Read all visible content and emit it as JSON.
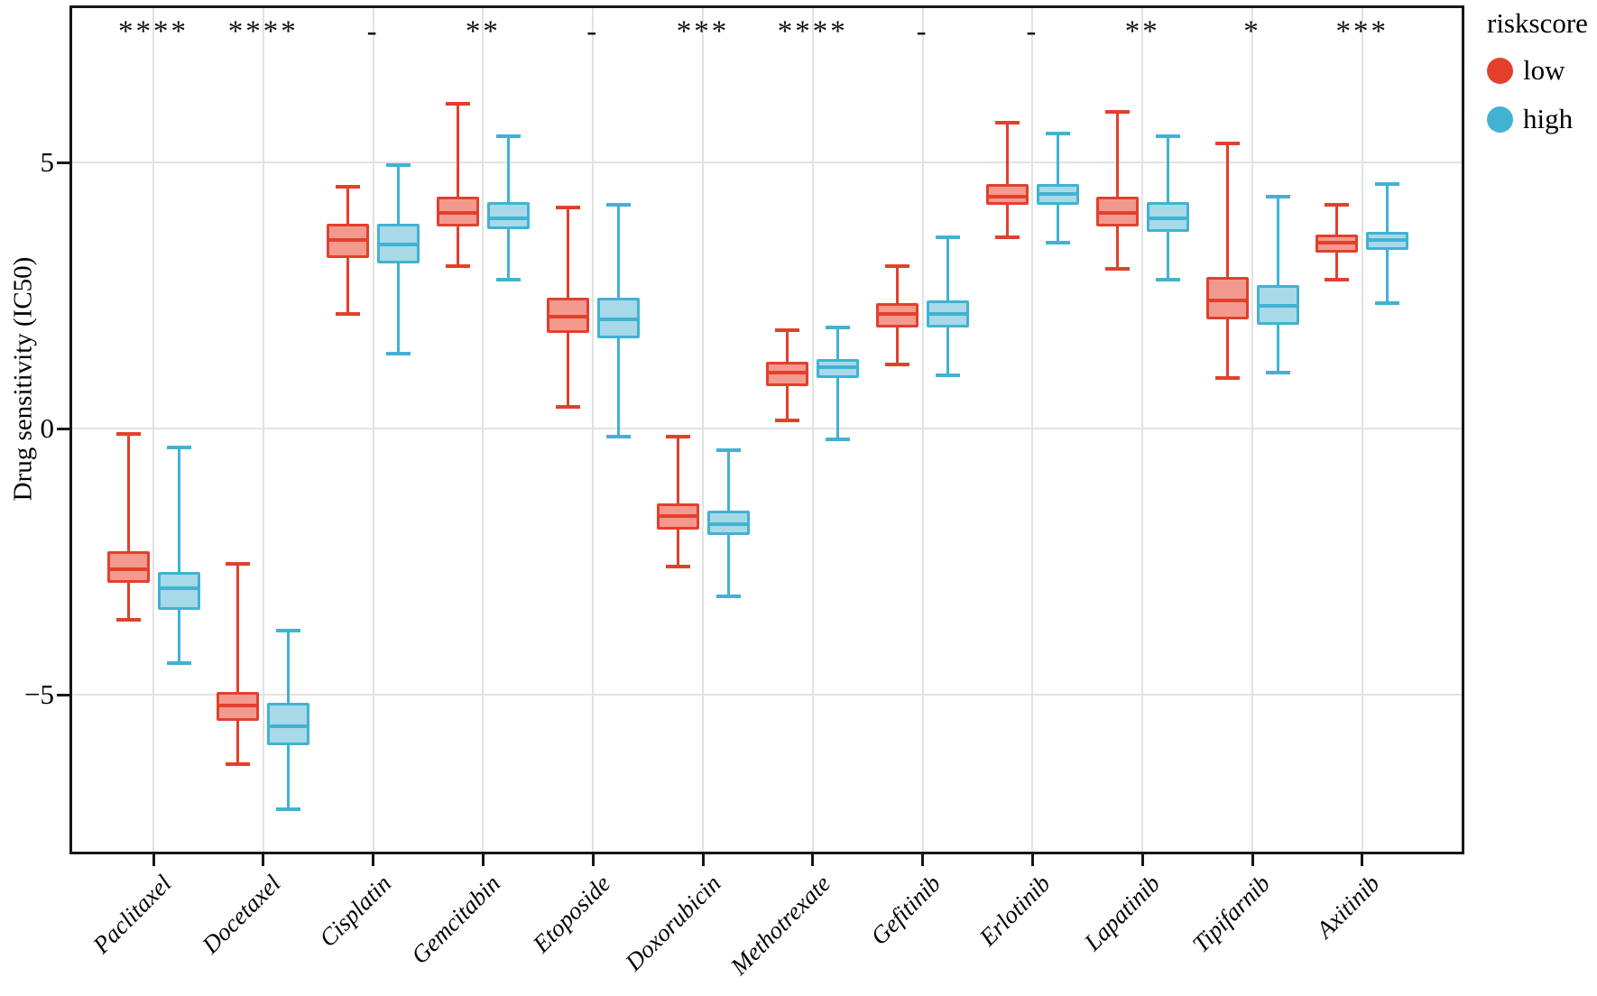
{
  "y_axis": {
    "title": "Drug sensitivity (IC50)",
    "ticks": [
      {
        "value": 5,
        "label": "5"
      },
      {
        "value": 0,
        "label": "0"
      },
      {
        "value": -5,
        "label": "−5"
      }
    ]
  },
  "legend": {
    "title": "riskscore",
    "items": [
      {
        "label": "low",
        "color": "#e2402d"
      },
      {
        "label": "high",
        "color": "#41b2d2"
      }
    ]
  },
  "chart_data": {
    "type": "boxplot",
    "title": "",
    "xlabel": "",
    "ylabel": "Drug sensitivity (IC50)",
    "ylim": [
      -8,
      7.9
    ],
    "grid": "major-only",
    "legend_position": "right-top",
    "categories": [
      "Paclitaxel",
      "Docetaxel",
      "Cisplatin",
      "Gemcitabin",
      "Etoposide",
      "Doxorubicin",
      "Methotrexate",
      "Gefitinib",
      "Erlotinib",
      "Lapatinib",
      "Tipifarnib",
      "Axitinib"
    ],
    "significance": [
      "****",
      "****",
      "-",
      "**",
      "-",
      "***",
      "****",
      "-",
      "-",
      "**",
      "*",
      "***"
    ],
    "series": [
      {
        "name": "low",
        "stroke": "#e2402d",
        "fill": "#f39a8f",
        "boxes": [
          {
            "min": -3.6,
            "q1": -2.9,
            "median": -2.65,
            "q3": -2.3,
            "max": -0.1
          },
          {
            "min": -6.3,
            "q1": -5.5,
            "median": -5.2,
            "q3": -4.95,
            "max": -2.55
          },
          {
            "min": 2.15,
            "q1": 3.2,
            "median": 3.55,
            "q3": 3.85,
            "max": 4.55
          },
          {
            "min": 3.05,
            "q1": 3.8,
            "median": 4.05,
            "q3": 4.35,
            "max": 6.1
          },
          {
            "min": 0.4,
            "q1": 1.8,
            "median": 2.1,
            "q3": 2.45,
            "max": 4.15
          },
          {
            "min": -2.6,
            "q1": -1.9,
            "median": -1.65,
            "q3": -1.4,
            "max": -0.15
          },
          {
            "min": 0.15,
            "q1": 0.8,
            "median": 1.05,
            "q3": 1.25,
            "max": 1.85
          },
          {
            "min": 1.2,
            "q1": 1.9,
            "median": 2.15,
            "q3": 2.35,
            "max": 3.05
          },
          {
            "min": 3.6,
            "q1": 4.2,
            "median": 4.35,
            "q3": 4.6,
            "max": 5.75
          },
          {
            "min": 3.0,
            "q1": 3.8,
            "median": 4.05,
            "q3": 4.35,
            "max": 5.95
          },
          {
            "min": 0.95,
            "q1": 2.05,
            "median": 2.4,
            "q3": 2.85,
            "max": 5.35
          },
          {
            "min": 2.8,
            "q1": 3.3,
            "median": 3.5,
            "q3": 3.65,
            "max": 4.2
          }
        ]
      },
      {
        "name": "high",
        "stroke": "#41b2d2",
        "fill": "#a8d9e8",
        "boxes": [
          {
            "min": -4.4,
            "q1": -3.4,
            "median": -3.0,
            "q3": -2.7,
            "max": -0.35
          },
          {
            "min": -7.15,
            "q1": -5.95,
            "median": -5.6,
            "q3": -5.15,
            "max": -3.8
          },
          {
            "min": 1.4,
            "q1": 3.1,
            "median": 3.45,
            "q3": 3.85,
            "max": 4.95
          },
          {
            "min": 2.8,
            "q1": 3.75,
            "median": 3.95,
            "q3": 4.25,
            "max": 5.5
          },
          {
            "min": -0.15,
            "q1": 1.7,
            "median": 2.05,
            "q3": 2.45,
            "max": 4.2
          },
          {
            "min": -3.15,
            "q1": -2.0,
            "median": -1.8,
            "q3": -1.55,
            "max": -0.4
          },
          {
            "min": -0.2,
            "q1": 0.95,
            "median": 1.15,
            "q3": 1.3,
            "max": 1.9
          },
          {
            "min": 1.0,
            "q1": 1.9,
            "median": 2.15,
            "q3": 2.4,
            "max": 3.6
          },
          {
            "min": 3.5,
            "q1": 4.2,
            "median": 4.4,
            "q3": 4.6,
            "max": 5.55
          },
          {
            "min": 2.8,
            "q1": 3.7,
            "median": 3.95,
            "q3": 4.25,
            "max": 5.5
          },
          {
            "min": 1.05,
            "q1": 1.95,
            "median": 2.3,
            "q3": 2.7,
            "max": 4.35
          },
          {
            "min": 2.35,
            "q1": 3.35,
            "median": 3.55,
            "q3": 3.7,
            "max": 4.6
          }
        ]
      }
    ]
  }
}
